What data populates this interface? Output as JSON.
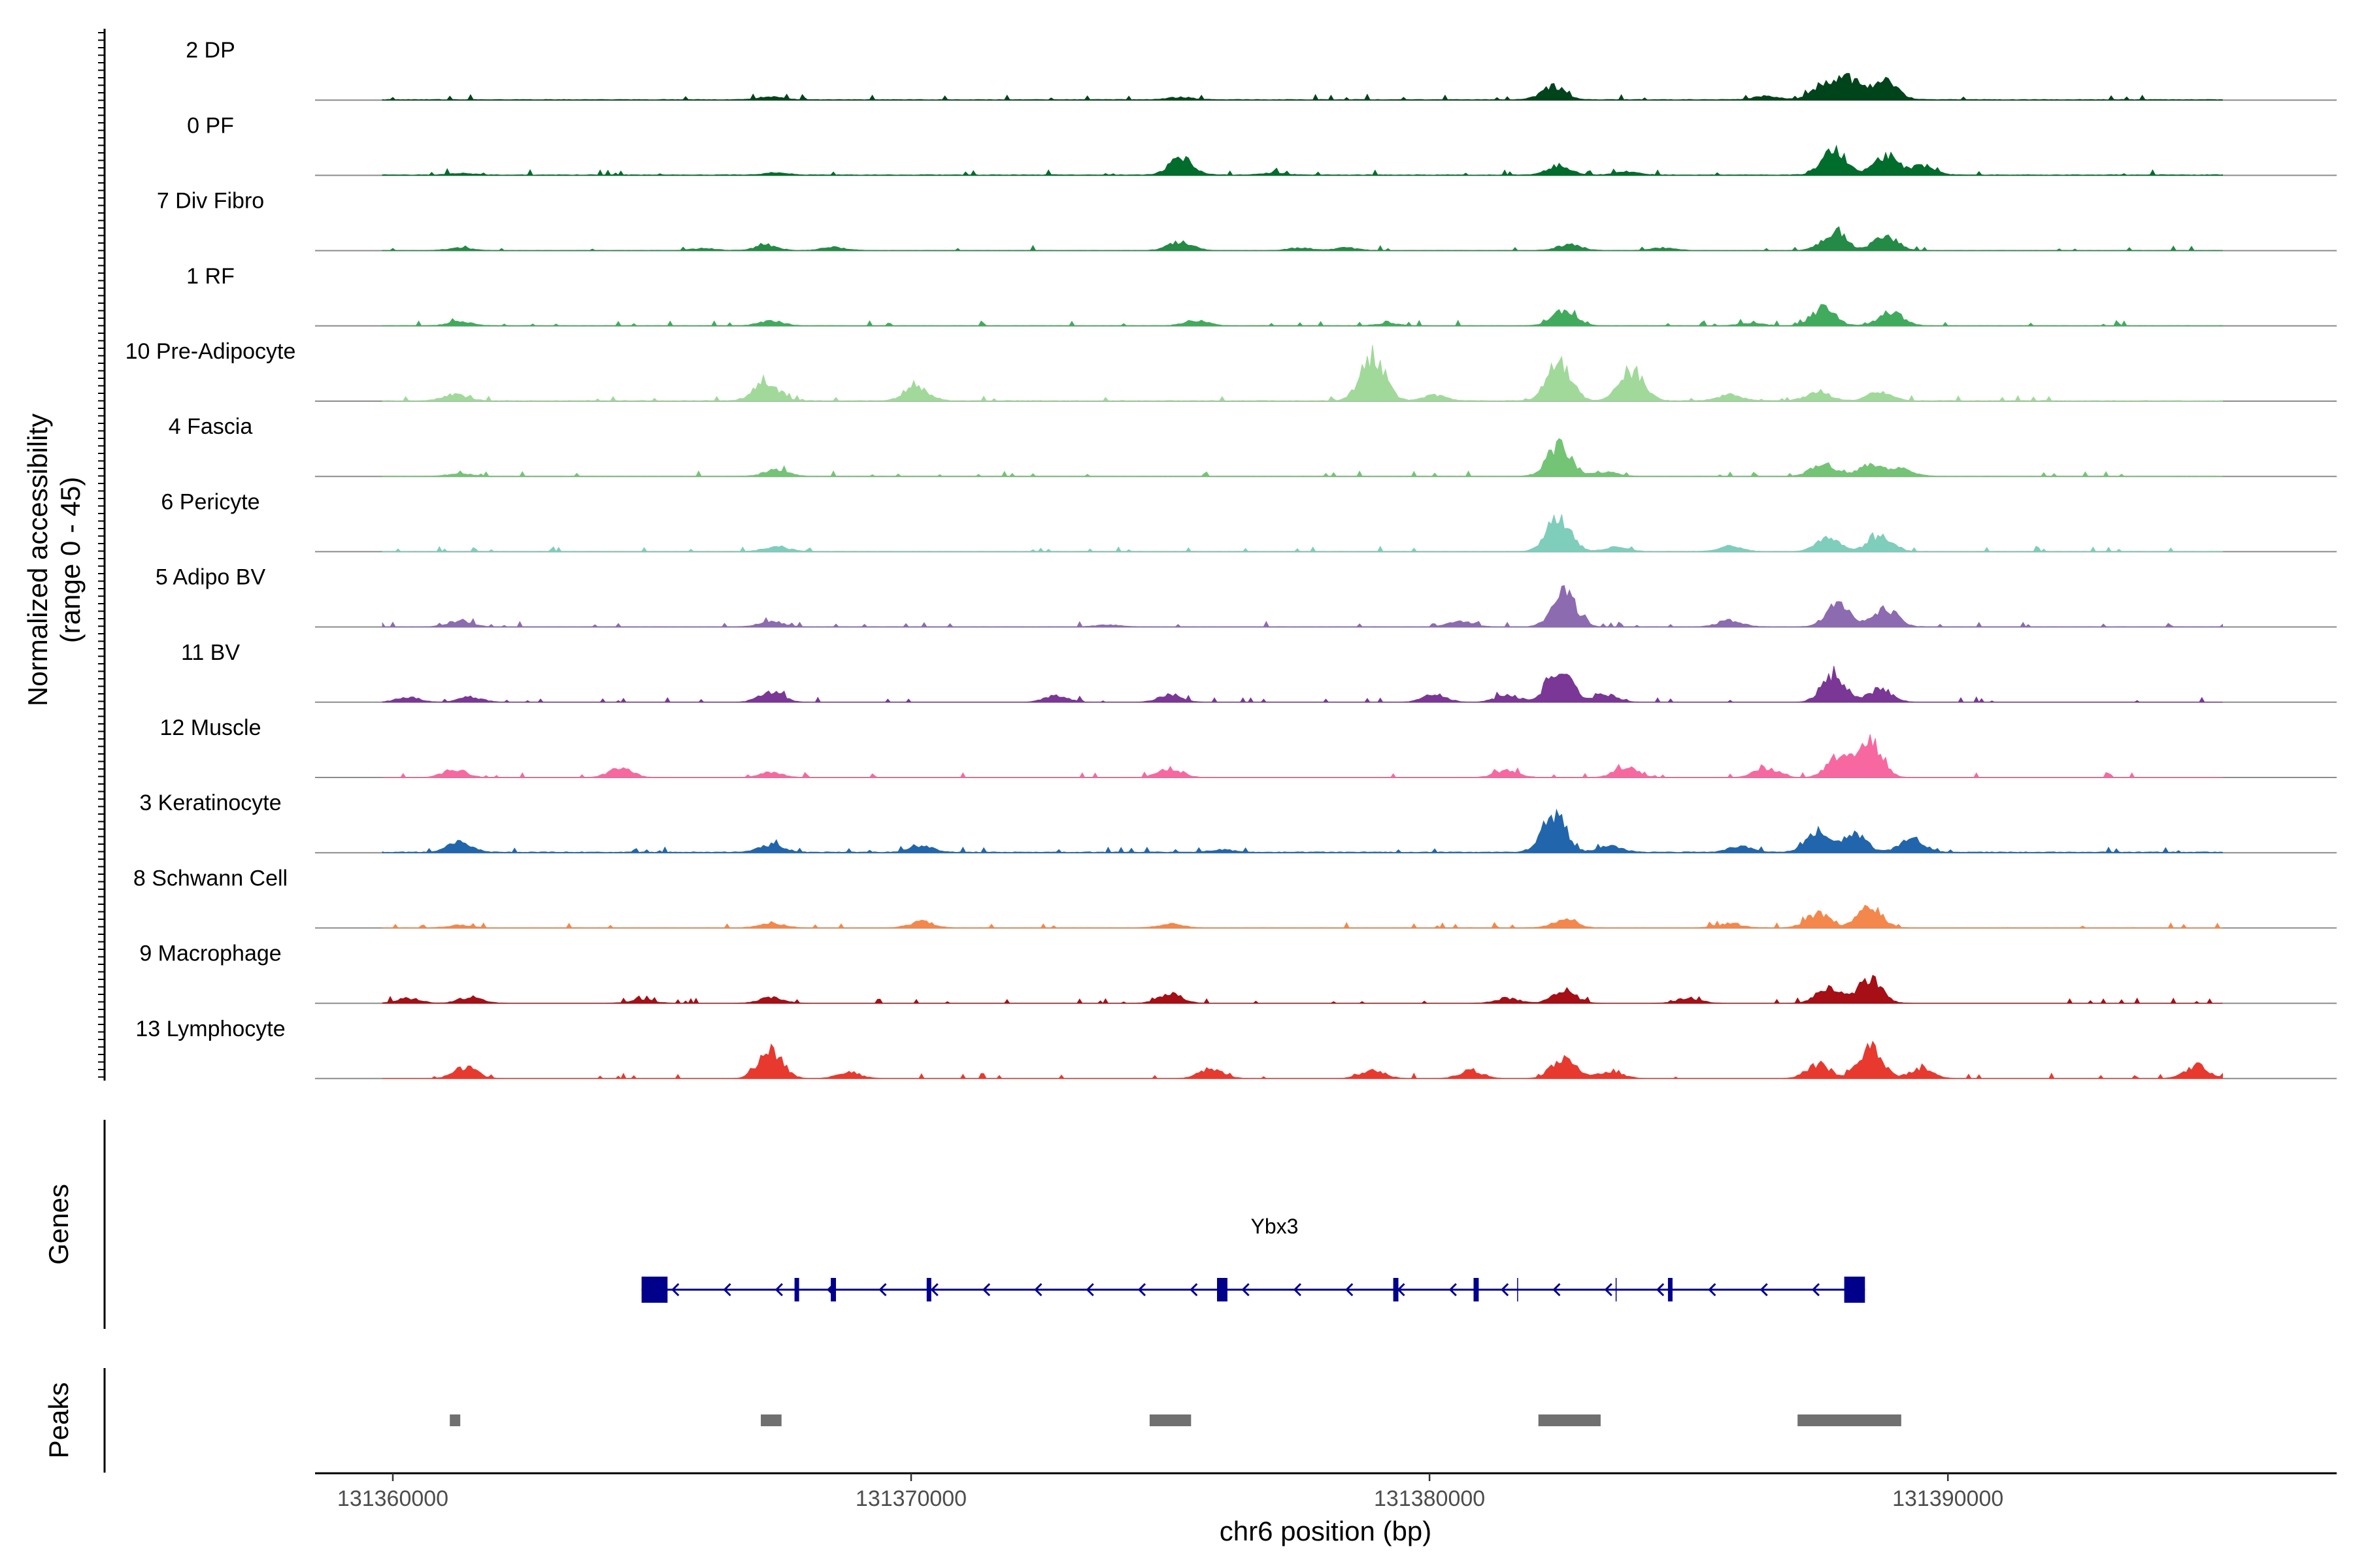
{
  "chart_data": {
    "type": "area",
    "title": "",
    "xlabel": "chr6 position (bp)",
    "ylabel": "Normalized accessibility",
    "ylabel_sub": "(range 0 - 45)",
    "ylim": [
      0,
      45
    ],
    "xlim": [
      131358500,
      131397500
    ],
    "x_ticks": [
      131360000,
      131370000,
      131380000,
      131390000
    ],
    "x_tick_labels": [
      "131360000",
      "131370000",
      "131380000",
      "131390000"
    ],
    "track_section_labels": {
      "genes": "Genes",
      "peaks": "Peaks"
    },
    "series": [
      {
        "name": "2 DP",
        "color": "#00441b",
        "baseline": 0.8,
        "peaks": [
          [
            131367300,
            6
          ],
          [
            131375200,
            5
          ],
          [
            131382400,
            26
          ],
          [
            131386500,
            7
          ],
          [
            131387600,
            28
          ],
          [
            131388100,
            40
          ],
          [
            131388800,
            35
          ]
        ]
      },
      {
        "name": "0 PF",
        "color": "#006d2c",
        "baseline": 0.8,
        "peaks": [
          [
            131361300,
            3
          ],
          [
            131367400,
            4
          ],
          [
            131375200,
            33
          ],
          [
            131377000,
            4
          ],
          [
            131382500,
            18
          ],
          [
            131383800,
            6
          ],
          [
            131387800,
            55
          ],
          [
            131388800,
            38
          ],
          [
            131389500,
            18
          ]
        ]
      },
      {
        "name": "7 Div Fibro",
        "color": "#238b45",
        "baseline": 0.4,
        "peaks": [
          [
            131361300,
            5
          ],
          [
            131366000,
            4
          ],
          [
            131367200,
            9
          ],
          [
            131368500,
            6
          ],
          [
            131375200,
            17
          ],
          [
            131377500,
            5
          ],
          [
            131378400,
            5
          ],
          [
            131382700,
            12
          ],
          [
            131384500,
            5
          ],
          [
            131387800,
            35
          ],
          [
            131388800,
            28
          ]
        ]
      },
      {
        "name": "1 RF",
        "color": "#41ab5d",
        "baseline": 0.4,
        "peaks": [
          [
            131361300,
            8
          ],
          [
            131367300,
            10
          ],
          [
            131375500,
            10
          ],
          [
            131379200,
            4
          ],
          [
            131382600,
            30
          ],
          [
            131386200,
            5
          ],
          [
            131387600,
            35
          ],
          [
            131388900,
            28
          ]
        ]
      },
      {
        "name": "10 Pre-Adipocyte",
        "color": "#a1d99b",
        "baseline": 0.8,
        "peaks": [
          [
            131361200,
            12
          ],
          [
            131367200,
            37
          ],
          [
            131370100,
            27
          ],
          [
            131378900,
            90
          ],
          [
            131380100,
            10
          ],
          [
            131382500,
            72
          ],
          [
            131383900,
            60
          ],
          [
            131385800,
            12
          ],
          [
            131387500,
            18
          ],
          [
            131388700,
            18
          ]
        ]
      },
      {
        "name": "4 Fascia",
        "color": "#74c476",
        "baseline": 0.4,
        "peaks": [
          [
            131361300,
            5
          ],
          [
            131367400,
            13
          ],
          [
            131382500,
            60
          ],
          [
            131383400,
            8
          ],
          [
            131387600,
            25
          ],
          [
            131388500,
            24
          ],
          [
            131389100,
            14
          ]
        ]
      },
      {
        "name": "6 Pericyte",
        "color": "#7fcdbb",
        "baseline": 0.4,
        "peaks": [
          [
            131367400,
            10
          ],
          [
            131382500,
            70
          ],
          [
            131383600,
            8
          ],
          [
            131385800,
            10
          ],
          [
            131387700,
            25
          ],
          [
            131388700,
            30
          ]
        ]
      },
      {
        "name": "5 Adipo BV",
        "color": "#8c6bb1",
        "baseline": 0.4,
        "peaks": [
          [
            131361300,
            12
          ],
          [
            131367300,
            10
          ],
          [
            131373800,
            4
          ],
          [
            131380600,
            10
          ],
          [
            131382600,
            65
          ],
          [
            131385800,
            12
          ],
          [
            131387900,
            48
          ],
          [
            131388800,
            35
          ]
        ]
      },
      {
        "name": "11 BV",
        "color": "#7a3796",
        "baseline": 0,
        "peaks": [
          [
            131360300,
            10
          ],
          [
            131361500,
            10
          ],
          [
            131367300,
            22
          ],
          [
            131372800,
            12
          ],
          [
            131375000,
            15
          ],
          [
            131380100,
            15
          ],
          [
            131381500,
            15
          ],
          [
            131382500,
            72
          ],
          [
            131383400,
            15
          ],
          [
            131387800,
            58
          ],
          [
            131388700,
            25
          ]
        ]
      },
      {
        "name": "12 Muscle",
        "color": "#f768a1",
        "baseline": 0,
        "peaks": [
          [
            131361200,
            15
          ],
          [
            131364400,
            18
          ],
          [
            131367300,
            10
          ],
          [
            131375000,
            18
          ],
          [
            131381500,
            15
          ],
          [
            131383800,
            20
          ],
          [
            131386500,
            18
          ],
          [
            131387900,
            40
          ],
          [
            131388500,
            75
          ]
        ]
      },
      {
        "name": "3 Keratinocyte",
        "color": "#2166ac",
        "baseline": 1.0,
        "peaks": [
          [
            131361300,
            20
          ],
          [
            131367300,
            15
          ],
          [
            131370200,
            12
          ],
          [
            131376000,
            5
          ],
          [
            131382400,
            75
          ],
          [
            131383500,
            12
          ],
          [
            131386000,
            12
          ],
          [
            131387500,
            38
          ],
          [
            131388200,
            35
          ],
          [
            131389300,
            28
          ]
        ]
      },
      {
        "name": "8 Schwann Cell",
        "color": "#f4874b",
        "baseline": 0.4,
        "peaks": [
          [
            131361300,
            5
          ],
          [
            131367300,
            10
          ],
          [
            131370200,
            12
          ],
          [
            131375000,
            8
          ],
          [
            131382600,
            15
          ],
          [
            131385800,
            8
          ],
          [
            131387500,
            28
          ],
          [
            131388500,
            40
          ]
        ]
      },
      {
        "name": "9 Macrophage",
        "color": "#a50f15",
        "baseline": 0,
        "peaks": [
          [
            131360300,
            10
          ],
          [
            131361500,
            12
          ],
          [
            131364800,
            8
          ],
          [
            131367300,
            12
          ],
          [
            131375000,
            18
          ],
          [
            131381500,
            10
          ],
          [
            131382600,
            25
          ],
          [
            131385000,
            10
          ],
          [
            131387700,
            32
          ],
          [
            131388500,
            48
          ]
        ]
      },
      {
        "name": "13 Lymphocyte",
        "color": "#e8392f",
        "baseline": 0,
        "peaks": [
          [
            131361400,
            22
          ],
          [
            131367300,
            55
          ],
          [
            131368800,
            12
          ],
          [
            131375800,
            20
          ],
          [
            131378900,
            18
          ],
          [
            131380800,
            15
          ],
          [
            131382600,
            45
          ],
          [
            131383500,
            15
          ],
          [
            131387500,
            28
          ],
          [
            131388500,
            58
          ],
          [
            131389500,
            20
          ],
          [
            131394800,
            25
          ]
        ]
      }
    ],
    "gene": {
      "name": "Ybx3",
      "color": "#00008b",
      "start": 131364800,
      "end": 131388400,
      "strand": "-",
      "exons": [
        [
          131364800,
          131365300
        ],
        [
          131367750,
          131367800
        ],
        [
          131368450,
          131368550
        ],
        [
          131370300,
          131370350
        ],
        [
          131375900,
          131376100
        ],
        [
          131379300,
          131379400
        ],
        [
          131380850,
          131380950
        ],
        [
          131384600,
          131384650
        ],
        [
          131388000,
          131388400
        ]
      ]
    },
    "peaks": [
      [
        131361100,
        131361300
      ],
      [
        131367100,
        131367500
      ],
      [
        131374600,
        131375400
      ],
      [
        131382100,
        131383300
      ],
      [
        131387100,
        131389100
      ]
    ],
    "peak_color": "#707070"
  }
}
